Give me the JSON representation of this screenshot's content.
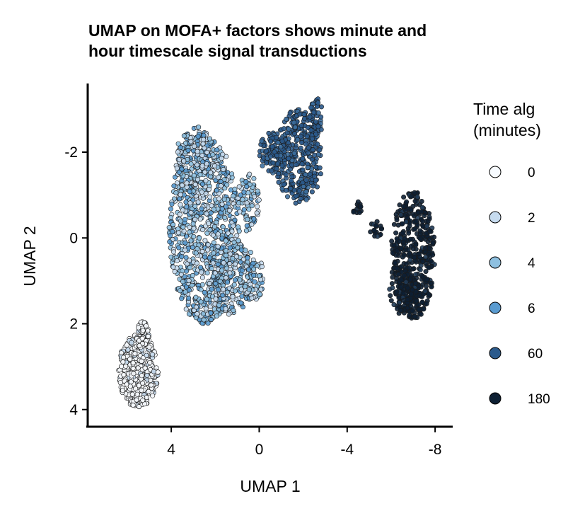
{
  "chart_data": {
    "type": "scatter",
    "title": [
      "UMAP on MOFA+ factors shows minute and",
      "hour timescale signal transductions"
    ],
    "xlabel": "UMAP 1",
    "ylabel": "UMAP 2",
    "x_reversed": true,
    "y_reversed": true,
    "xlim": [
      7.8,
      -8.8
    ],
    "ylim": [
      -3.6,
      4.4
    ],
    "x_ticks": [
      4,
      0,
      -4,
      -8
    ],
    "x_tick_labels": [
      "4",
      "0",
      "-4",
      "-8"
    ],
    "y_ticks": [
      -2,
      0,
      2,
      4
    ],
    "y_tick_labels": [
      "-2",
      "0",
      "2",
      "4"
    ],
    "legend": {
      "title": [
        "Time alg",
        "(minutes)"
      ],
      "position": "right",
      "entries": [
        {
          "label": "0",
          "color": "#f7fbff"
        },
        {
          "label": "2",
          "color": "#c6dbef"
        },
        {
          "label": "4",
          "color": "#8ec0e0"
        },
        {
          "label": "6",
          "color": "#5a9bd0"
        },
        {
          "label": "60",
          "color": "#2b5a8c"
        },
        {
          "label": "180",
          "color": "#0d1f33"
        }
      ]
    },
    "clusters": [
      {
        "time": "0",
        "color": "#eef3f8",
        "n": 520,
        "points": [
          [
            5.5,
            3.2
          ],
          [
            6.3,
            2.8
          ],
          [
            6.0,
            3.7
          ],
          [
            4.9,
            3.1
          ],
          [
            5.1,
            2.6
          ],
          [
            5.9,
            3.0
          ],
          [
            5.4,
            3.5
          ],
          [
            4.7,
            2.4
          ]
        ]
      },
      {
        "time": "2/4/6",
        "colors": [
          "#c6dbef",
          "#8ec0e0",
          "#5a9bd0"
        ],
        "n": 1300,
        "points": [
          [
            3.0,
            -1.5
          ],
          [
            2.0,
            -0.5
          ],
          [
            2.5,
            0.8
          ],
          [
            1.6,
            1.4
          ],
          [
            3.6,
            0.2
          ],
          [
            1.0,
            -1.2
          ],
          [
            2.2,
            -2.2
          ],
          [
            0.6,
            0.3
          ]
        ]
      },
      {
        "time": "60",
        "color": "#2b5a8c",
        "n": 480,
        "points": [
          [
            -2.0,
            -2.0
          ],
          [
            -1.5,
            -1.2
          ],
          [
            -2.4,
            -2.8
          ],
          [
            -1.0,
            -2.3
          ],
          [
            -2.6,
            -1.6
          ]
        ]
      },
      {
        "time": "180",
        "color": "#0d1f33",
        "n": 560,
        "points": [
          [
            -6.8,
            0.5
          ],
          [
            -7.2,
            -0.3
          ],
          [
            -6.3,
            1.2
          ],
          [
            -7.6,
            1.5
          ],
          [
            -5.7,
            0.4
          ],
          [
            -4.5,
            -0.7
          ]
        ]
      }
    ]
  }
}
